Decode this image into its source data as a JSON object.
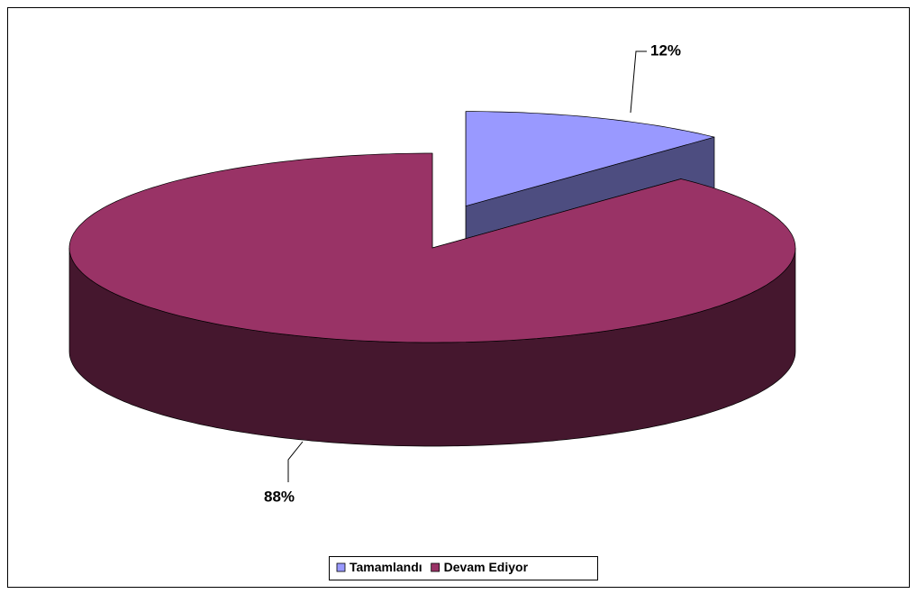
{
  "chart_data": {
    "type": "pie",
    "categories": [
      "Tamamlandı",
      "Devam Ediyor"
    ],
    "values": [
      12,
      88
    ],
    "value_labels": [
      "12%",
      "88%"
    ],
    "colors": [
      "#9999ff",
      "#993366"
    ],
    "legend": "bottom"
  }
}
